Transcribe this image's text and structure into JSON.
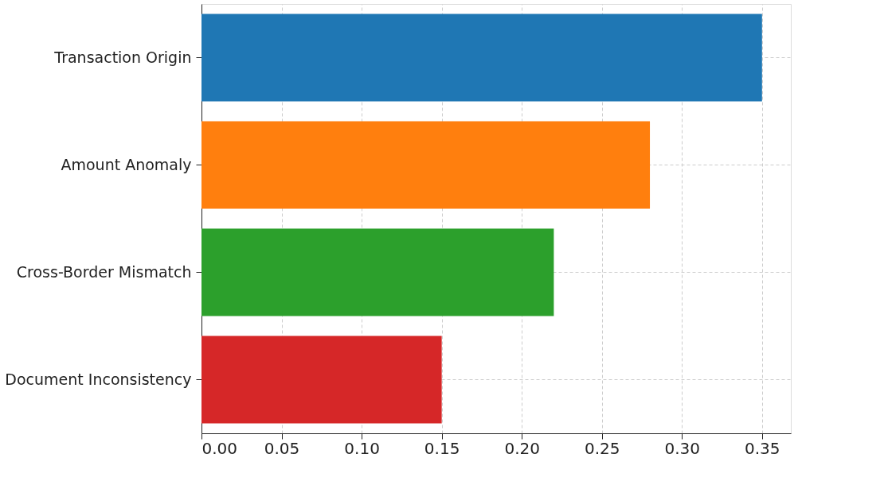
{
  "chart_data": {
    "type": "bar",
    "orientation": "horizontal",
    "categories": [
      "Transaction Origin",
      "Amount Anomaly",
      "Cross-Border Mismatch",
      "Document Inconsistency"
    ],
    "values": [
      0.35,
      0.28,
      0.22,
      0.15
    ],
    "colors": [
      "#1f77b4",
      "#ff7f0e",
      "#2ca02c",
      "#d62728"
    ],
    "xlim": [
      0,
      0.368
    ],
    "xticks": [
      {
        "value": 0,
        "label": "0.00"
      },
      {
        "value": 0.05,
        "label": "0.05"
      },
      {
        "value": 0.1,
        "label": "0.10"
      },
      {
        "value": 0.15,
        "label": "0.15"
      },
      {
        "value": 0.2,
        "label": "0.20"
      },
      {
        "value": 0.25,
        "label": "0.25"
      },
      {
        "value": 0.3,
        "label": "0.30"
      },
      {
        "value": 0.35,
        "label": "0.35"
      }
    ],
    "grid": true
  }
}
